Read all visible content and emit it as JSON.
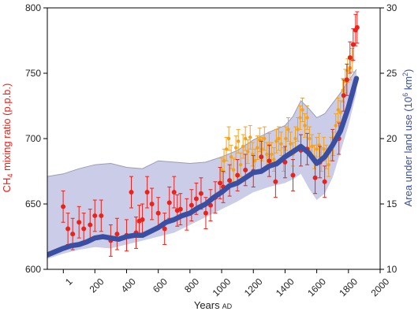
{
  "chart_data": {
    "type": "line",
    "xlabel": "Years",
    "xlabel_sub": "AD",
    "ylabel_left_main": "CH",
    "ylabel_left_sub": "4",
    "ylabel_left_rest": " mixing ratio (p.p.b.)",
    "ylabel_right_main": "Area under land use (10",
    "ylabel_right_sup": "6",
    "ylabel_right_rest": " km",
    "ylabel_right_sup2": "2",
    "ylabel_right_close": ")",
    "xlim": [
      -100,
      2000
    ],
    "ylim_left": [
      600,
      800
    ],
    "ylim_right": [
      10,
      30
    ],
    "x_ticks": [
      1,
      200,
      400,
      600,
      800,
      1000,
      1200,
      1400,
      1600,
      1800,
      2000
    ],
    "x_tick_labels": [
      "1",
      "200",
      "400",
      "600",
      "800",
      "1000",
      "1200",
      "1400",
      "1600",
      "1800",
      "2000"
    ],
    "y_left_ticks": [
      600,
      650,
      700,
      750,
      800
    ],
    "y_left_tick_labels": [
      "600",
      "650",
      "700",
      "750",
      "800"
    ],
    "y_right_ticks": [
      10,
      15,
      20,
      25,
      30
    ],
    "y_right_tick_labels": [
      "10",
      "15",
      "20",
      "25",
      "30"
    ],
    "colors": {
      "ch4_red": "#e8231c",
      "ch4_orange": "#f5a11a",
      "land_use_blue": "#3a4fa2",
      "band_fill": "#c4c7e6",
      "band_edge": "#9c9cb0",
      "left_axis_label": "#e8231c",
      "right_axis_label": "#3a4fa2"
    },
    "series": [
      {
        "axis": "right",
        "style": "thick-line",
        "x": [
          -100,
          0,
          50,
          100,
          150,
          200,
          250,
          300,
          350,
          400,
          450,
          500,
          550,
          600,
          650,
          700,
          750,
          800,
          850,
          900,
          950,
          1000,
          1050,
          1100,
          1150,
          1200,
          1250,
          1300,
          1350,
          1400,
          1450,
          1500,
          1550,
          1600,
          1650,
          1700,
          1750,
          1800,
          1850
        ],
        "values": [
          11.1,
          11.6,
          11.8,
          11.9,
          12.1,
          12.4,
          12.5,
          12.4,
          12.3,
          12.5,
          12.6,
          12.6,
          12.9,
          13.2,
          13.6,
          13.8,
          14.1,
          14.3,
          14.7,
          15.0,
          15.5,
          15.9,
          16.4,
          16.6,
          17.0,
          17.4,
          17.5,
          17.9,
          18.1,
          18.6,
          19.0,
          19.4,
          18.9,
          18.1,
          18.6,
          19.5,
          20.6,
          22.4,
          24.6
        ]
      },
      {
        "axis": "right",
        "style": "band",
        "x": [
          -100,
          0,
          100,
          200,
          300,
          400,
          500,
          600,
          700,
          800,
          900,
          1000,
          1100,
          1200,
          1300,
          1400,
          1450,
          1500,
          1550,
          1600,
          1650,
          1700,
          1750,
          1800,
          1850
        ],
        "upper": [
          17.1,
          17.3,
          17.7,
          18.0,
          18.1,
          17.8,
          17.7,
          18.3,
          18.2,
          18.1,
          18.2,
          18.6,
          19.1,
          19.9,
          20.5,
          21.0,
          21.7,
          22.9,
          22.3,
          21.6,
          21.9,
          22.7,
          23.5,
          24.4,
          25.3
        ],
        "lower": [
          10.8,
          11.2,
          11.5,
          11.7,
          11.6,
          11.9,
          12.2,
          12.5,
          12.8,
          13.4,
          14.0,
          14.6,
          15.2,
          15.9,
          16.3,
          16.6,
          16.9,
          17.3,
          16.2,
          15.3,
          15.8,
          17.0,
          19.0,
          21.0,
          23.5
        ]
      },
      {
        "axis": "left",
        "style": "points-with-error",
        "color": "red",
        "x": [
          0,
          30,
          60,
          100,
          130,
          170,
          200,
          240,
          300,
          340,
          400,
          430,
          460,
          480,
          500,
          530,
          560,
          600,
          640,
          670,
          700,
          720,
          740,
          780,
          810,
          840,
          870,
          900,
          930,
          960,
          990,
          1010,
          1050,
          1100,
          1150,
          1200,
          1250,
          1300,
          1340,
          1400,
          1450,
          1500,
          1540,
          1590,
          1620,
          1650,
          1700,
          1740,
          1770,
          1790,
          1810,
          1830,
          1845,
          1855
        ],
        "values": [
          648,
          631,
          627,
          636,
          631,
          634,
          641,
          641,
          622,
          627,
          626,
          659,
          628,
          637,
          638,
          659,
          650,
          643,
          631,
          651,
          659,
          645,
          646,
          642,
          649,
          654,
          658,
          643,
          649,
          655,
          666,
          663,
          668,
          672,
          676,
          675,
          686,
          683,
          667,
          682,
          672,
          691,
          692,
          670,
          682,
          667,
          695,
          700,
          733,
          745,
          762,
          772,
          783,
          785
        ],
        "errors": [
          12,
          12,
          12,
          12,
          12,
          12,
          12,
          12,
          12,
          12,
          12,
          12,
          12,
          12,
          12,
          12,
          12,
          12,
          12,
          12,
          12,
          12,
          12,
          12,
          12,
          12,
          12,
          12,
          12,
          12,
          12,
          12,
          12,
          12,
          12,
          12,
          12,
          12,
          12,
          12,
          12,
          12,
          12,
          12,
          12,
          12,
          12,
          12,
          12,
          12,
          12,
          12,
          12,
          12
        ]
      },
      {
        "axis": "left",
        "style": "points-with-error",
        "color": "orange",
        "x": [
          1000,
          1015,
          1030,
          1045,
          1060,
          1075,
          1090,
          1105,
          1120,
          1135,
          1150,
          1165,
          1180,
          1195,
          1210,
          1225,
          1240,
          1255,
          1270,
          1285,
          1300,
          1315,
          1330,
          1345,
          1360,
          1375,
          1390,
          1405,
          1420,
          1435,
          1450,
          1465,
          1480,
          1495,
          1510,
          1525,
          1540,
          1555,
          1570,
          1585,
          1600,
          1615,
          1630,
          1645,
          1660,
          1675,
          1690,
          1705,
          1720,
          1735,
          1750,
          1765,
          1780,
          1795,
          1810,
          1825
        ],
        "values": [
          676,
          683,
          692,
          700,
          686,
          676,
          693,
          698,
          680,
          694,
          700,
          690,
          701,
          688,
          683,
          693,
          699,
          692,
          700,
          688,
          695,
          688,
          684,
          698,
          700,
          696,
          684,
          700,
          707,
          696,
          688,
          700,
          707,
          716,
          722,
          710,
          716,
          700,
          694,
          686,
          692,
          695,
          684,
          692,
          686,
          680,
          692,
          696,
          710,
          722,
          720,
          737,
          744,
          752,
          754,
          760
        ],
        "errors": [
          9,
          9,
          9,
          9,
          9,
          9,
          9,
          9,
          9,
          9,
          9,
          9,
          9,
          9,
          9,
          9,
          9,
          9,
          9,
          9,
          9,
          9,
          9,
          9,
          9,
          9,
          9,
          9,
          9,
          9,
          9,
          9,
          9,
          9,
          9,
          9,
          9,
          9,
          9,
          9,
          9,
          9,
          9,
          9,
          9,
          9,
          9,
          9,
          9,
          9,
          9,
          9,
          9,
          9,
          9,
          9
        ]
      }
    ]
  }
}
